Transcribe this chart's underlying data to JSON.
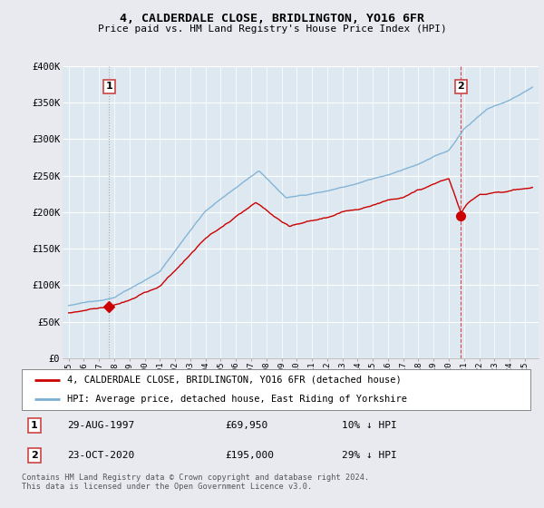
{
  "title": "4, CALDERDALE CLOSE, BRIDLINGTON, YO16 6FR",
  "subtitle": "Price paid vs. HM Land Registry's House Price Index (HPI)",
  "legend_line1": "4, CALDERDALE CLOSE, BRIDLINGTON, YO16 6FR (detached house)",
  "legend_line2": "HPI: Average price, detached house, East Riding of Yorkshire",
  "footnote": "Contains HM Land Registry data © Crown copyright and database right 2024.\nThis data is licensed under the Open Government Licence v3.0.",
  "sale1_date": "29-AUG-1997",
  "sale1_price": "£69,950",
  "sale1_hpi": "10% ↓ HPI",
  "sale1_year": 1997.65,
  "sale1_value": 69950,
  "sale2_date": "23-OCT-2020",
  "sale2_price": "£195,000",
  "sale2_hpi": "29% ↓ HPI",
  "sale2_year": 2020.8,
  "sale2_value": 195000,
  "red_color": "#cc0000",
  "blue_color": "#7aafd4",
  "sale1_vline_color": "#aaaaaa",
  "sale2_vline_color": "#dd4444",
  "box_edge_color": "#cc4444",
  "bg_color": "#e8eaf0",
  "plot_bg": "#dde8f0",
  "grid_color": "#ffffff",
  "ylim": [
    0,
    400000
  ],
  "yticks": [
    0,
    50000,
    100000,
    150000,
    200000,
    250000,
    300000,
    350000,
    400000
  ],
  "ytick_labels": [
    "£0",
    "£50K",
    "£100K",
    "£150K",
    "£200K",
    "£250K",
    "£300K",
    "£350K",
    "£400K"
  ],
  "xlim_min": 1994.6,
  "xlim_max": 2025.9
}
